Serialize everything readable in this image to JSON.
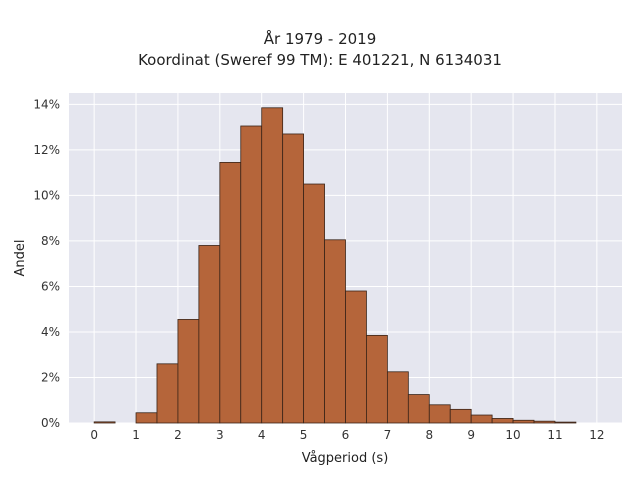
{
  "chart_data": {
    "type": "bar",
    "title": "År 1979 - 2019",
    "subtitle": "Koordinat (Sweref 99 TM): E 401221, N 6134031",
    "xlabel": "Vågperiod (s)",
    "ylabel": "Andel",
    "xlim": [
      -0.6,
      12.6
    ],
    "ylim": [
      0,
      14.5
    ],
    "x_ticks": [
      0,
      1,
      2,
      3,
      4,
      5,
      6,
      7,
      8,
      9,
      10,
      11,
      12
    ],
    "y_ticks": [
      0,
      2,
      4,
      6,
      8,
      10,
      12,
      14
    ],
    "y_tick_suffix": "%",
    "bin_width": 0.5,
    "bins_start": [
      0,
      0.5,
      1,
      1.5,
      2,
      2.5,
      3,
      3.5,
      4,
      4.5,
      5,
      5.5,
      6,
      6.5,
      7,
      7.5,
      8,
      8.5,
      9,
      9.5,
      10,
      10.5,
      11,
      11.5
    ],
    "values": [
      0.05,
      0,
      0.45,
      2.6,
      4.55,
      7.8,
      11.45,
      13.05,
      13.85,
      12.7,
      10.5,
      8.05,
      5.8,
      3.85,
      2.25,
      1.25,
      0.8,
      0.6,
      0.35,
      0.2,
      0.12,
      0.08,
      0.04,
      0
    ],
    "bar_color": "#b5653a",
    "grid": true
  }
}
